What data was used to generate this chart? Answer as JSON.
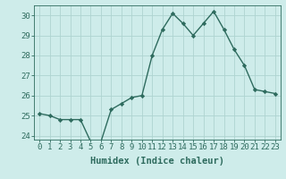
{
  "x": [
    0,
    1,
    2,
    3,
    4,
    5,
    6,
    7,
    8,
    9,
    10,
    11,
    12,
    13,
    14,
    15,
    16,
    17,
    18,
    19,
    20,
    21,
    22,
    23
  ],
  "y": [
    25.1,
    25.0,
    24.8,
    24.8,
    24.8,
    23.7,
    23.7,
    25.3,
    25.6,
    25.9,
    26.0,
    28.0,
    29.3,
    30.1,
    29.6,
    29.0,
    29.6,
    30.2,
    29.3,
    28.3,
    27.5,
    26.3,
    26.2,
    26.1
  ],
  "line_color": "#2e6b5e",
  "marker": "D",
  "marker_size": 2.2,
  "bg_color": "#ceecea",
  "grid_color": "#aed4d0",
  "xlabel": "Humidex (Indice chaleur)",
  "ylim": [
    23.8,
    30.5
  ],
  "yticks": [
    24,
    25,
    26,
    27,
    28,
    29,
    30
  ],
  "xlim": [
    -0.5,
    23.5
  ],
  "tick_color": "#2e6b5e",
  "label_color": "#2e6b5e",
  "tick_fontsize": 6.5,
  "xlabel_fontsize": 7.5,
  "linewidth": 1.0
}
